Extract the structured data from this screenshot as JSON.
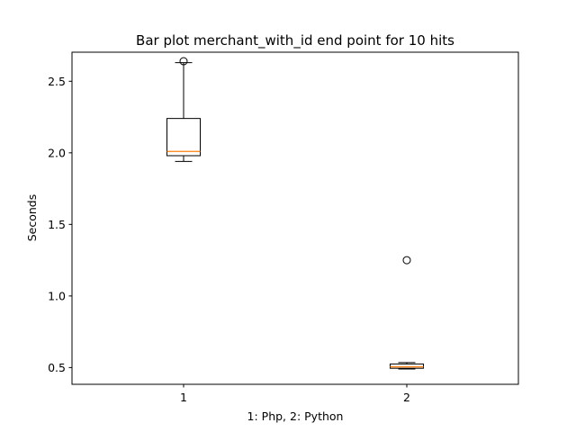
{
  "chart_data": {
    "type": "boxplot",
    "title": "Bar plot merchant_with_id end point for 10 hits",
    "xlabel": "1: Php, 2: Python",
    "ylabel": "Seconds",
    "xlim": [
      0.5,
      2.5
    ],
    "ylim": [
      0.383,
      2.703
    ],
    "categories": [
      "1",
      "2"
    ],
    "yticks": [
      0.5,
      1.0,
      1.5,
      2.0,
      2.5
    ],
    "ytick_labels": [
      "0.5",
      "1.0",
      "1.5",
      "2.0",
      "2.5"
    ],
    "grid": false,
    "boxes": [
      {
        "x": 1,
        "whisker_low": 1.94,
        "q1": 1.98,
        "median": 2.01,
        "q3": 2.24,
        "whisker_high": 2.63,
        "fliers": [
          2.64
        ]
      },
      {
        "x": 2,
        "whisker_low": 0.49,
        "q1": 0.495,
        "median": 0.505,
        "q3": 0.525,
        "whisker_high": 0.535,
        "fliers": [
          1.25
        ]
      }
    ],
    "colors": {
      "box": "#000000",
      "median": "#ff7f0e",
      "flier": "#000000"
    }
  }
}
